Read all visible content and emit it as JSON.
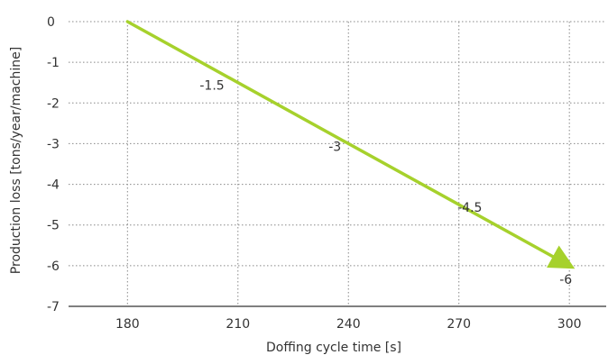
{
  "chart_data": {
    "type": "line",
    "xlabel": "Doffing cycle time [s]",
    "ylabel": "Production loss [tons/year/machine]",
    "x_ticks": [
      "180",
      "210",
      "240",
      "270",
      "300"
    ],
    "y_ticks": [
      "0",
      "-1",
      "-2",
      "-3",
      "-4",
      "-5",
      "-6",
      "-7"
    ],
    "xlim": [
      164,
      310
    ],
    "ylim": [
      -7,
      0
    ],
    "grid": true,
    "series": [
      {
        "x": [
          180,
          300
        ],
        "y": [
          0,
          -6
        ],
        "color": "#a6d12c"
      }
    ],
    "data_labels": [
      {
        "x": 205,
        "y": -1.5,
        "text": "-1.5"
      },
      {
        "x": 240,
        "y": -3,
        "text": "-3"
      },
      {
        "x": 275,
        "y": -4.5,
        "text": "-4.5"
      },
      {
        "x": 300,
        "y": -6,
        "text": "-6"
      }
    ],
    "colors": {
      "line": "#a6d12c",
      "grid": "#888888",
      "axis": "#333333"
    }
  }
}
